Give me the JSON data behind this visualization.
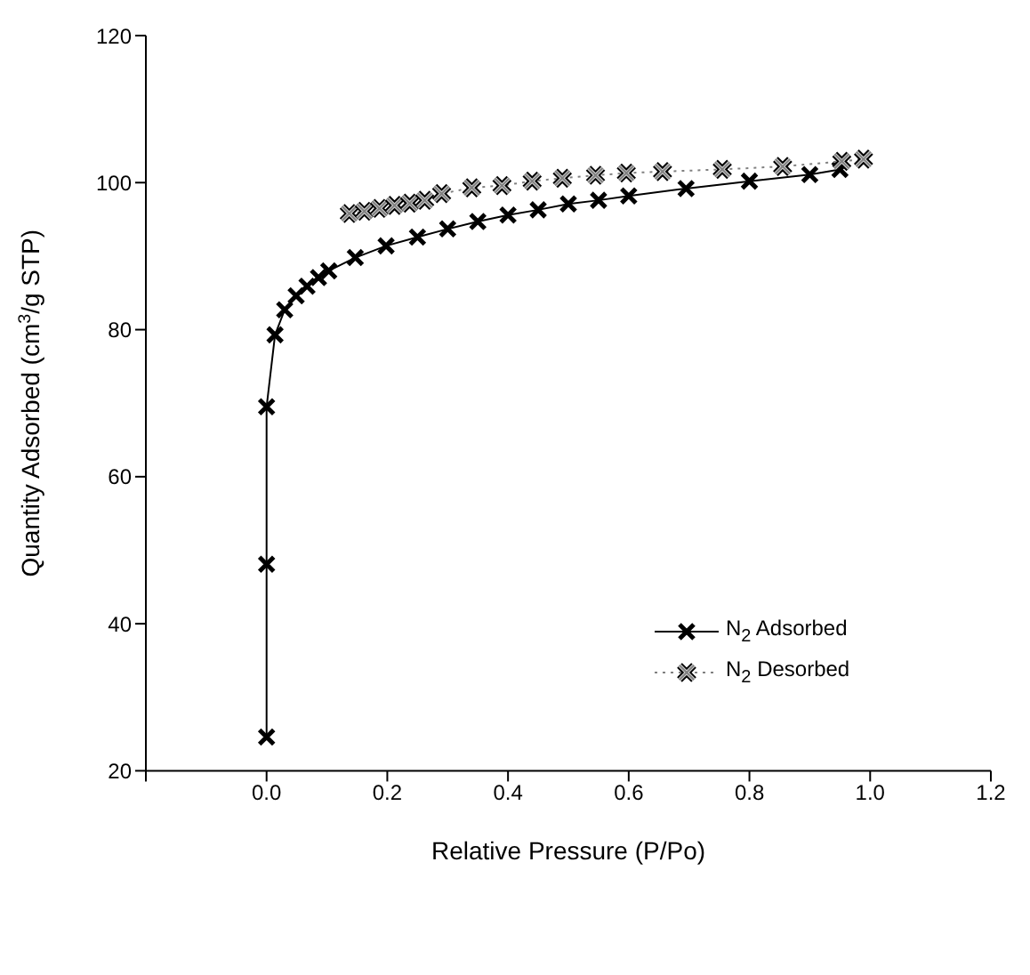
{
  "chart_data": {
    "type": "line",
    "xlabel": "Relative Pressure (P/Po)",
    "ylabel": "Quantity Adsorbed (cm$^{3}$/g STP)",
    "xlim": [
      -0.2,
      1.2
    ],
    "xticks": [
      {
        "value": -0.2,
        "label": null
      },
      {
        "value": 0,
        "label": "0.0"
      },
      {
        "value": 0.2,
        "label": "0.2"
      },
      {
        "value": 0.4,
        "label": "0.4"
      },
      {
        "value": 0.6,
        "label": "0.6"
      },
      {
        "value": 0.8,
        "label": "0.8"
      },
      {
        "value": 1,
        "label": "1.0"
      },
      {
        "value": 1.2,
        "label": "1.2"
      }
    ],
    "ylim": [
      20,
      120
    ],
    "yticks": [
      20,
      40,
      60,
      80,
      100,
      120
    ],
    "grid": false,
    "legend": "bottom right",
    "marker": "cross",
    "series": [
      {
        "name": "N$_{2}$ Adsorbed",
        "color": "#000000",
        "line_style": "solid",
        "x": [
          0,
          0,
          0,
          0.014,
          0.03,
          0.049,
          0.067,
          0.086,
          0.103,
          0.147,
          0.198,
          0.25,
          0.3,
          0.35,
          0.4,
          0.45,
          0.5,
          0.55,
          0.6,
          0.695,
          0.8,
          0.9,
          0.95
        ],
        "values": [
          24.6,
          48.1,
          69.5,
          79.3,
          82.7,
          84.6,
          85.9,
          87.1,
          88,
          89.8,
          91.4,
          92.6,
          93.7,
          94.7,
          95.6,
          96.3,
          97.1,
          97.6,
          98.2,
          99.2,
          100.2,
          101.1,
          101.8
        ]
      },
      {
        "name": "N$_{2}$ Desorbed",
        "color": "#808080",
        "line_style": "dotted",
        "x": [
          0.137,
          0.162,
          0.187,
          0.212,
          0.237,
          0.262,
          0.29,
          0.34,
          0.39,
          0.44,
          0.49,
          0.545,
          0.596,
          0.656,
          0.755,
          0.855,
          0.953,
          0.989
        ],
        "values": [
          95.8,
          96.1,
          96.5,
          96.9,
          97.2,
          97.6,
          98.5,
          99.3,
          99.6,
          100.2,
          100.6,
          101,
          101.3,
          101.5,
          101.8,
          102.2,
          102.9,
          103.2
        ]
      }
    ]
  }
}
